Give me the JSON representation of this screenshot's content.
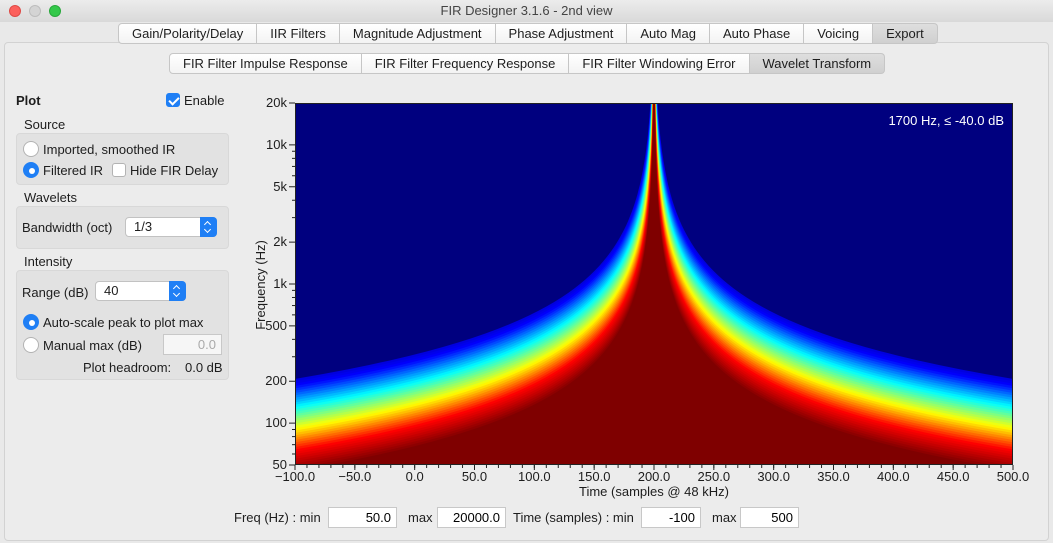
{
  "window": {
    "title": "FIR Designer 3.1.6 - 2nd view"
  },
  "main_tabs": [
    {
      "label": "Gain/Polarity/Delay",
      "selected": false
    },
    {
      "label": "IIR Filters",
      "selected": false
    },
    {
      "label": "Magnitude Adjustment",
      "selected": false
    },
    {
      "label": "Phase Adjustment",
      "selected": false
    },
    {
      "label": "Auto Mag",
      "selected": false
    },
    {
      "label": "Auto Phase",
      "selected": false
    },
    {
      "label": "Voicing",
      "selected": false
    },
    {
      "label": "Export",
      "selected": true
    }
  ],
  "sub_tabs": [
    {
      "label": "FIR Filter Impulse Response",
      "selected": false
    },
    {
      "label": "FIR Filter Frequency Response",
      "selected": false
    },
    {
      "label": "FIR Filter Windowing Error",
      "selected": false
    },
    {
      "label": "Wavelet Transform",
      "selected": true
    }
  ],
  "panel": {
    "plot_label": "Plot",
    "enable_label": "Enable",
    "enable_checked": true,
    "source_label": "Source",
    "source_option_imported": "Imported, smoothed IR",
    "source_option_filtered": "Filtered IR",
    "source_selected": "filtered",
    "hide_fir_delay_label": "Hide FIR Delay",
    "hide_fir_delay_checked": false,
    "wavelets_label": "Wavelets",
    "bandwidth_label": "Bandwidth (oct)",
    "bandwidth_value": "1/3",
    "intensity_label": "Intensity",
    "range_label": "Range (dB)",
    "range_value": "40",
    "auto_scale_label": "Auto-scale peak to plot max",
    "manual_max_label": "Manual max (dB)",
    "manual_max_value": "0.0",
    "scale_selected": "auto",
    "headroom_label": "Plot headroom:",
    "headroom_value": "0.0 dB"
  },
  "chart_data": {
    "type": "heatmap",
    "annotation": "1700 Hz, ≤ -40.0 dB",
    "xlabel": "Time (samples @ 48 kHz)",
    "ylabel": "Frequency (Hz)",
    "xlim": [
      -100,
      500
    ],
    "ylim": [
      50,
      20000
    ],
    "y_scale": "log",
    "x_ticks": [
      "−100.0",
      "−50.0",
      "0.0",
      "50.0",
      "100.0",
      "150.0",
      "200.0",
      "250.0",
      "300.0",
      "350.0",
      "400.0",
      "450.0",
      "500.0"
    ],
    "y_ticks": [
      {
        "value": 50,
        "label": "50"
      },
      {
        "value": 100,
        "label": "100"
      },
      {
        "value": 200,
        "label": "200"
      },
      {
        "value": 500,
        "label": "500"
      },
      {
        "value": 1000,
        "label": "1k"
      },
      {
        "value": 2000,
        "label": "2k"
      },
      {
        "value": 5000,
        "label": "5k"
      },
      {
        "value": 10000,
        "label": "10k"
      },
      {
        "value": 20000,
        "label": "20k"
      }
    ],
    "peak_time": 200,
    "colormap": [
      "#00007f",
      "#0000ff",
      "#00ffff",
      "#ffff00",
      "#ff0000",
      "#7f0000"
    ],
    "background_color": "#00007f"
  },
  "range_fields": {
    "freq_label": "Freq (Hz) : min",
    "freq_min": "50.0",
    "freq_max_label": "max",
    "freq_max": "20000.0",
    "time_label": "Time (samples) : min",
    "time_min": "-100",
    "time_max_label": "max",
    "time_max": "500"
  }
}
